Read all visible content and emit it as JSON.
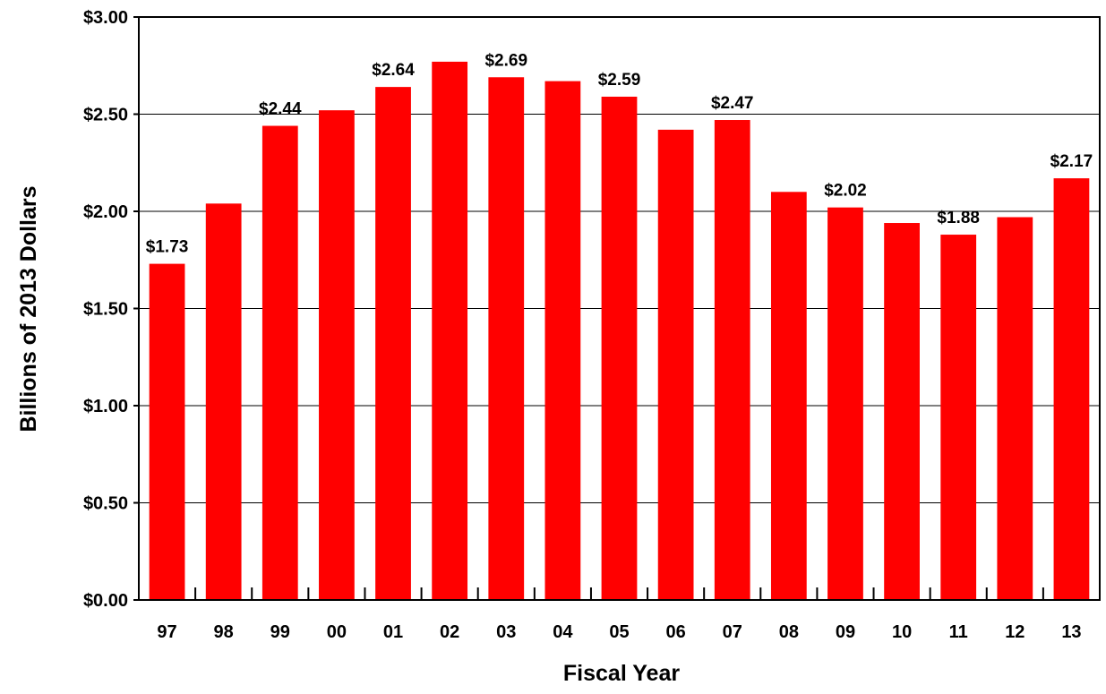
{
  "chart_data": {
    "type": "bar",
    "title": "",
    "xlabel": "Fiscal Year",
    "ylabel": "Billions of 2013 Dollars",
    "categories": [
      "97",
      "98",
      "99",
      "00",
      "01",
      "02",
      "03",
      "04",
      "05",
      "06",
      "07",
      "08",
      "09",
      "10",
      "11",
      "12",
      "13"
    ],
    "values": [
      1.73,
      2.04,
      2.44,
      2.52,
      2.64,
      2.77,
      2.69,
      2.67,
      2.59,
      2.42,
      2.47,
      2.1,
      2.02,
      1.94,
      1.88,
      1.97,
      2.17
    ],
    "data_labels": [
      "$1.73",
      "",
      "$2.44",
      "",
      "$2.64",
      "",
      "$2.69",
      "",
      "$2.59",
      "",
      "$2.47",
      "",
      "$2.02",
      "",
      "$1.88",
      "",
      "$2.17"
    ],
    "ylim": [
      0,
      3
    ],
    "yticks": [
      0,
      0.5,
      1,
      1.5,
      2,
      2.5,
      3
    ],
    "ytick_labels": [
      "$0.00",
      "$0.50",
      "$1.00",
      "$1.50",
      "$2.00",
      "$2.50",
      "$3.00"
    ],
    "grid": true,
    "legend": "none",
    "colors": {
      "bar": "#ff0000",
      "grid": "#000000",
      "axis": "#000000"
    }
  }
}
